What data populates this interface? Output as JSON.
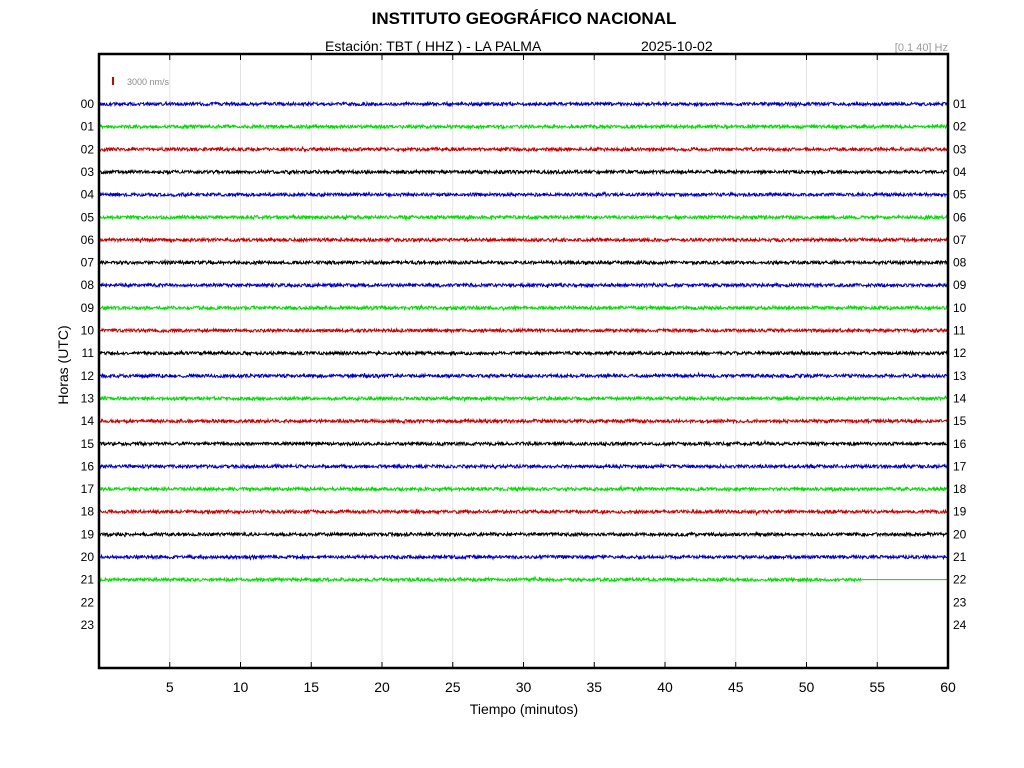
{
  "header": {
    "title": "INSTITUTO GEOGRÁFICO NACIONAL",
    "station": "Estación:  TBT ( HHZ ) - LA PALMA",
    "date": "2025-10-02",
    "filter": "[0.1 40] Hz"
  },
  "chart_data": {
    "type": "line",
    "title": "INSTITUTO GEOGRÁFICO NACIONAL",
    "xlabel": "Tiempo (minutos)",
    "ylabel": "Horas (UTC)",
    "xlim": [
      0,
      60
    ],
    "xticks": [
      "5",
      "10",
      "15",
      "20",
      "25",
      "30",
      "35",
      "40",
      "45",
      "50",
      "55",
      "60"
    ],
    "left_hour_labels": [
      "00",
      "01",
      "02",
      "03",
      "04",
      "05",
      "06",
      "07",
      "08",
      "09",
      "10",
      "11",
      "12",
      "13",
      "14",
      "15",
      "16",
      "17",
      "18",
      "19",
      "20",
      "21",
      "22",
      "23"
    ],
    "right_hour_labels": [
      "01",
      "02",
      "03",
      "04",
      "05",
      "06",
      "07",
      "08",
      "09",
      "10",
      "11",
      "12",
      "13",
      "14",
      "15",
      "16",
      "17",
      "18",
      "19",
      "20",
      "21",
      "22",
      "23",
      "24"
    ],
    "scale_label": "3000 nm/s",
    "trace_colors": [
      "#0000cc",
      "#00dd00",
      "#cc0000",
      "#000000"
    ],
    "series": [
      {
        "hour": "00",
        "data_end_minute": 60
      },
      {
        "hour": "01",
        "data_end_minute": 60
      },
      {
        "hour": "02",
        "data_end_minute": 60
      },
      {
        "hour": "03",
        "data_end_minute": 60
      },
      {
        "hour": "04",
        "data_end_minute": 60
      },
      {
        "hour": "05",
        "data_end_minute": 60
      },
      {
        "hour": "06",
        "data_end_minute": 60
      },
      {
        "hour": "07",
        "data_end_minute": 60
      },
      {
        "hour": "08",
        "data_end_minute": 60
      },
      {
        "hour": "09",
        "data_end_minute": 60
      },
      {
        "hour": "10",
        "data_end_minute": 60
      },
      {
        "hour": "11",
        "data_end_minute": 60
      },
      {
        "hour": "12",
        "data_end_minute": 60
      },
      {
        "hour": "13",
        "data_end_minute": 60
      },
      {
        "hour": "14",
        "data_end_minute": 60
      },
      {
        "hour": "15",
        "data_end_minute": 60
      },
      {
        "hour": "16",
        "data_end_minute": 60
      },
      {
        "hour": "17",
        "data_end_minute": 60
      },
      {
        "hour": "18",
        "data_end_minute": 60
      },
      {
        "hour": "19",
        "data_end_minute": 60
      },
      {
        "hour": "20",
        "data_end_minute": 60
      },
      {
        "hour": "21",
        "data_end_minute": 53.9
      }
    ],
    "grid": true
  }
}
